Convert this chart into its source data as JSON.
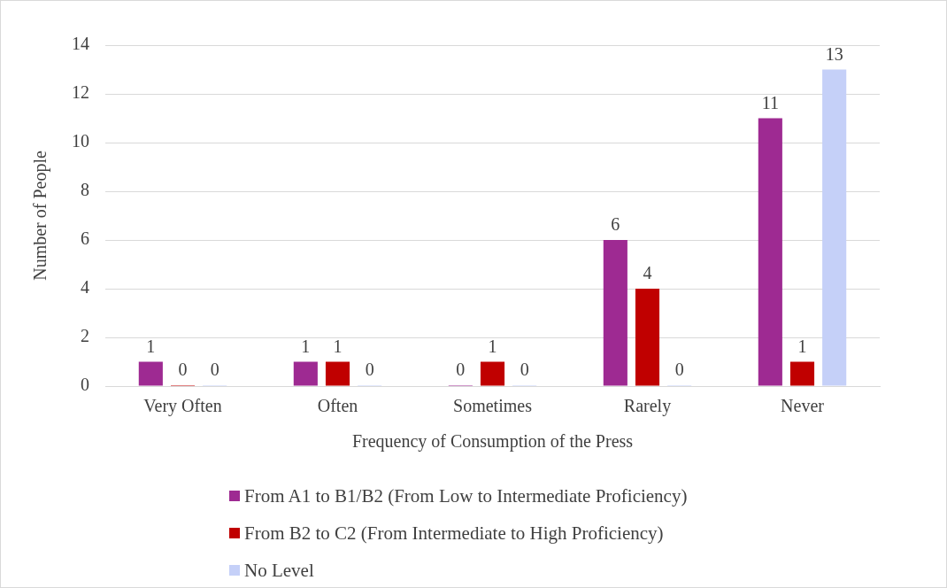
{
  "chart_data": {
    "type": "bar",
    "xlabel": "Frequency of Consumption of the Press",
    "ylabel": "Number of People",
    "categories": [
      "Very Often",
      "Often",
      "Sometimes",
      "Rarely",
      "Never"
    ],
    "series": [
      {
        "name": "From A1 to B1/B2 (From Low to Intermediate Proficiency)",
        "color": "#9e2a92",
        "values": [
          1,
          1,
          0,
          6,
          11
        ]
      },
      {
        "name": "From B2 to C2 (From Intermediate to High Proficiency)",
        "color": "#c00000",
        "values": [
          0,
          1,
          1,
          4,
          1
        ]
      },
      {
        "name": "No Level",
        "color": "#c5d0f8",
        "values": [
          0,
          0,
          0,
          0,
          13
        ]
      }
    ],
    "ylim": [
      0,
      14
    ],
    "yticks": [
      0,
      2,
      4,
      6,
      8,
      10,
      12,
      14
    ],
    "grid": "y",
    "legend": "bottom",
    "data_labels": true
  }
}
